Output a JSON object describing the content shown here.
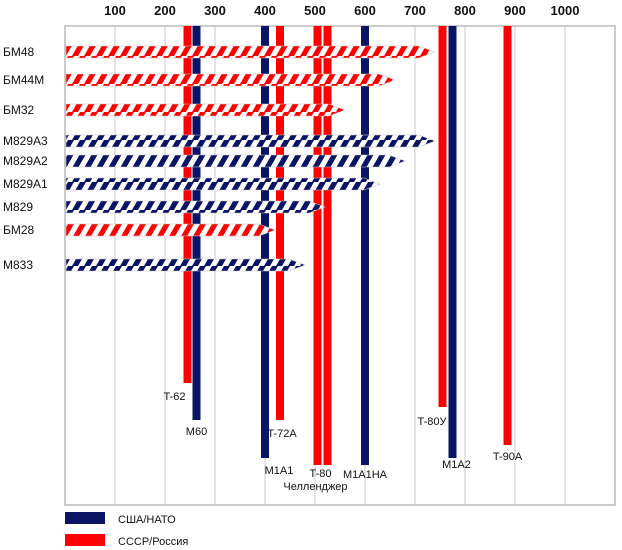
{
  "chart_data": {
    "type": "bar",
    "x_ticks": [
      100,
      200,
      300,
      400,
      500,
      600,
      700,
      800,
      900,
      1000
    ],
    "xlim": [
      0,
      1100
    ],
    "grid": true,
    "colors": {
      "usa": "#0a1464",
      "ussr": "#ff0000"
    },
    "projectiles": [
      {
        "label": "БМ48",
        "value": 740,
        "side": "ussr"
      },
      {
        "label": "БМ44М",
        "value": 660,
        "side": "ussr"
      },
      {
        "label": "БМ32",
        "value": 560,
        "side": "ussr"
      },
      {
        "label": "M829A3",
        "value": 740,
        "side": "usa"
      },
      {
        "label": "M829A2",
        "value": 680,
        "side": "usa"
      },
      {
        "label": "M829A1",
        "value": 630,
        "side": "usa"
      },
      {
        "label": "M829",
        "value": 520,
        "side": "usa"
      },
      {
        "label": "БМ28",
        "value": 420,
        "side": "ussr"
      },
      {
        "label": "M833",
        "value": 480,
        "side": "usa"
      }
    ],
    "tanks": [
      {
        "label": "T-62",
        "value": 245,
        "side": "ussr"
      },
      {
        "label": "M60",
        "value": 263,
        "side": "usa"
      },
      {
        "label": "M1A1",
        "value": 400,
        "side": "usa"
      },
      {
        "label": "T-72A",
        "value": 430,
        "side": "ussr"
      },
      {
        "label": "T-80",
        "value": 505,
        "side": "ussr"
      },
      {
        "label": "Челленджер",
        "value": 525,
        "side": "ussr"
      },
      {
        "label": "M1A1HA",
        "value": 600,
        "side": "usa"
      },
      {
        "label": "T-80У",
        "value": 755,
        "side": "ussr"
      },
      {
        "label": "M1A2",
        "value": 775,
        "side": "usa"
      },
      {
        "label": "T-90A",
        "value": 885,
        "side": "ussr"
      }
    ],
    "legend": [
      {
        "label": "США/НАТО",
        "side": "usa"
      },
      {
        "label": "СССР/Россия",
        "side": "ussr"
      }
    ]
  }
}
